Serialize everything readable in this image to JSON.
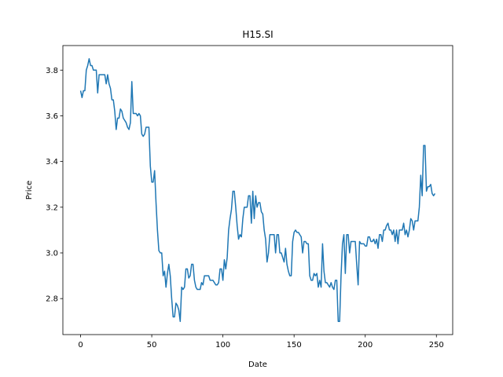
{
  "chart_data": {
    "type": "line",
    "title": "H15.SI",
    "x_label": "Date",
    "y_label": "Price",
    "x": [
      0,
      1,
      2,
      3,
      4,
      5,
      6,
      7,
      8,
      9,
      10,
      11,
      12,
      13,
      14,
      15,
      16,
      17,
      18,
      19,
      20,
      21,
      22,
      23,
      24,
      25,
      26,
      27,
      28,
      29,
      30,
      31,
      32,
      33,
      34,
      35,
      36,
      37,
      38,
      39,
      40,
      41,
      42,
      43,
      44,
      45,
      46,
      47,
      48,
      49,
      50,
      51,
      52,
      53,
      54,
      55,
      56,
      57,
      58,
      59,
      60,
      61,
      62,
      63,
      64,
      65,
      66,
      67,
      68,
      69,
      70,
      71,
      72,
      73,
      74,
      75,
      76,
      77,
      78,
      79,
      80,
      81,
      82,
      83,
      84,
      85,
      86,
      87,
      88,
      89,
      90,
      91,
      92,
      93,
      94,
      95,
      96,
      97,
      98,
      99,
      100,
      101,
      102,
      103,
      104,
      105,
      106,
      107,
      108,
      109,
      110,
      111,
      112,
      113,
      114,
      115,
      116,
      117,
      118,
      119,
      120,
      121,
      122,
      123,
      124,
      125,
      126,
      127,
      128,
      129,
      130,
      131,
      132,
      133,
      134,
      135,
      136,
      137,
      138,
      139,
      140,
      141,
      142,
      143,
      144,
      145,
      146,
      147,
      148,
      149,
      150,
      151,
      152,
      153,
      154,
      155,
      156,
      157,
      158,
      159,
      160,
      161,
      162,
      163,
      164,
      165,
      166,
      167,
      168,
      169,
      170,
      171,
      172,
      173,
      174,
      175,
      176,
      177,
      178,
      179,
      180,
      181,
      182,
      183,
      184,
      185,
      186,
      187,
      188,
      189,
      190,
      191,
      192,
      193,
      194,
      195,
      196,
      197,
      198,
      199,
      200,
      201,
      202,
      203,
      204,
      205,
      206,
      207,
      208,
      209,
      210,
      211,
      212,
      213,
      214,
      215,
      216,
      217,
      218,
      219,
      220,
      221,
      222,
      223,
      224,
      225,
      226,
      227,
      228,
      229,
      230,
      231,
      232,
      233,
      234,
      235,
      236,
      237,
      238,
      239,
      240,
      241,
      242,
      243,
      244,
      245,
      246,
      247,
      248,
      249
    ],
    "series": [
      {
        "name": "H15.SI",
        "color": "#1f77b4",
        "values": [
          3.71,
          3.68,
          3.71,
          3.71,
          3.8,
          3.82,
          3.85,
          3.82,
          3.82,
          3.8,
          3.8,
          3.8,
          3.7,
          3.78,
          3.78,
          3.78,
          3.78,
          3.78,
          3.74,
          3.78,
          3.74,
          3.72,
          3.67,
          3.67,
          3.62,
          3.54,
          3.59,
          3.59,
          3.63,
          3.62,
          3.59,
          3.58,
          3.57,
          3.55,
          3.54,
          3.57,
          3.75,
          3.61,
          3.61,
          3.61,
          3.6,
          3.61,
          3.6,
          3.52,
          3.51,
          3.52,
          3.55,
          3.55,
          3.55,
          3.38,
          3.31,
          3.31,
          3.36,
          3.22,
          3.1,
          3.01,
          3.0,
          3.0,
          2.9,
          2.92,
          2.85,
          2.91,
          2.95,
          2.9,
          2.8,
          2.72,
          2.72,
          2.78,
          2.77,
          2.75,
          2.7,
          2.85,
          2.84,
          2.85,
          2.93,
          2.93,
          2.89,
          2.9,
          2.95,
          2.95,
          2.88,
          2.85,
          2.84,
          2.84,
          2.84,
          2.87,
          2.86,
          2.9,
          2.9,
          2.9,
          2.9,
          2.88,
          2.88,
          2.88,
          2.87,
          2.86,
          2.86,
          2.87,
          2.93,
          2.93,
          2.88,
          2.97,
          2.93,
          2.98,
          3.1,
          3.15,
          3.19,
          3.27,
          3.27,
          3.2,
          3.12,
          3.06,
          3.08,
          3.07,
          3.15,
          3.2,
          3.2,
          3.2,
          3.25,
          3.25,
          3.13,
          3.27,
          3.15,
          3.25,
          3.2,
          3.22,
          3.22,
          3.18,
          3.17,
          3.1,
          3.06,
          2.96,
          3.0,
          3.08,
          3.08,
          3.08,
          3.08,
          3.0,
          3.08,
          3.08,
          3.0,
          3.0,
          2.98,
          2.96,
          3.02,
          2.95,
          2.92,
          2.9,
          2.9,
          3.05,
          3.09,
          3.1,
          3.09,
          3.09,
          3.08,
          3.07,
          3.0,
          3.05,
          3.05,
          3.04,
          3.04,
          2.9,
          2.88,
          2.88,
          2.91,
          2.9,
          2.91,
          2.85,
          2.88,
          2.85,
          3.04,
          2.92,
          2.87,
          2.87,
          2.86,
          2.85,
          2.87,
          2.85,
          2.84,
          2.88,
          2.88,
          2.7,
          2.7,
          2.9,
          3.04,
          3.08,
          2.91,
          3.08,
          3.08,
          3.0,
          3.05,
          3.05,
          3.05,
          3.05,
          2.95,
          2.86,
          3.05,
          3.04,
          3.04,
          3.04,
          3.03,
          3.03,
          3.07,
          3.07,
          3.05,
          3.05,
          3.06,
          3.04,
          3.06,
          3.02,
          3.08,
          3.08,
          3.05,
          3.1,
          3.1,
          3.12,
          3.13,
          3.1,
          3.1,
          3.08,
          3.1,
          3.05,
          3.1,
          3.04,
          3.1,
          3.1,
          3.1,
          3.13,
          3.08,
          3.1,
          3.07,
          3.1,
          3.15,
          3.14,
          3.1,
          3.14,
          3.14,
          3.14,
          3.2,
          3.34,
          3.25,
          3.47,
          3.47,
          3.27,
          3.29,
          3.29,
          3.3,
          3.26,
          3.25,
          3.26
        ]
      }
    ],
    "xlim": [
      -12.45,
      261.45
    ],
    "xticks": [
      0,
      50,
      100,
      150,
      200,
      250
    ],
    "ylim": [
      2.6425,
      3.9075
    ],
    "yticks": [
      2.8,
      {
        "value": 3,
        "label": "3.0"
      },
      3.2,
      3.4,
      3.6,
      3.8
    ],
    "grid": false
  }
}
